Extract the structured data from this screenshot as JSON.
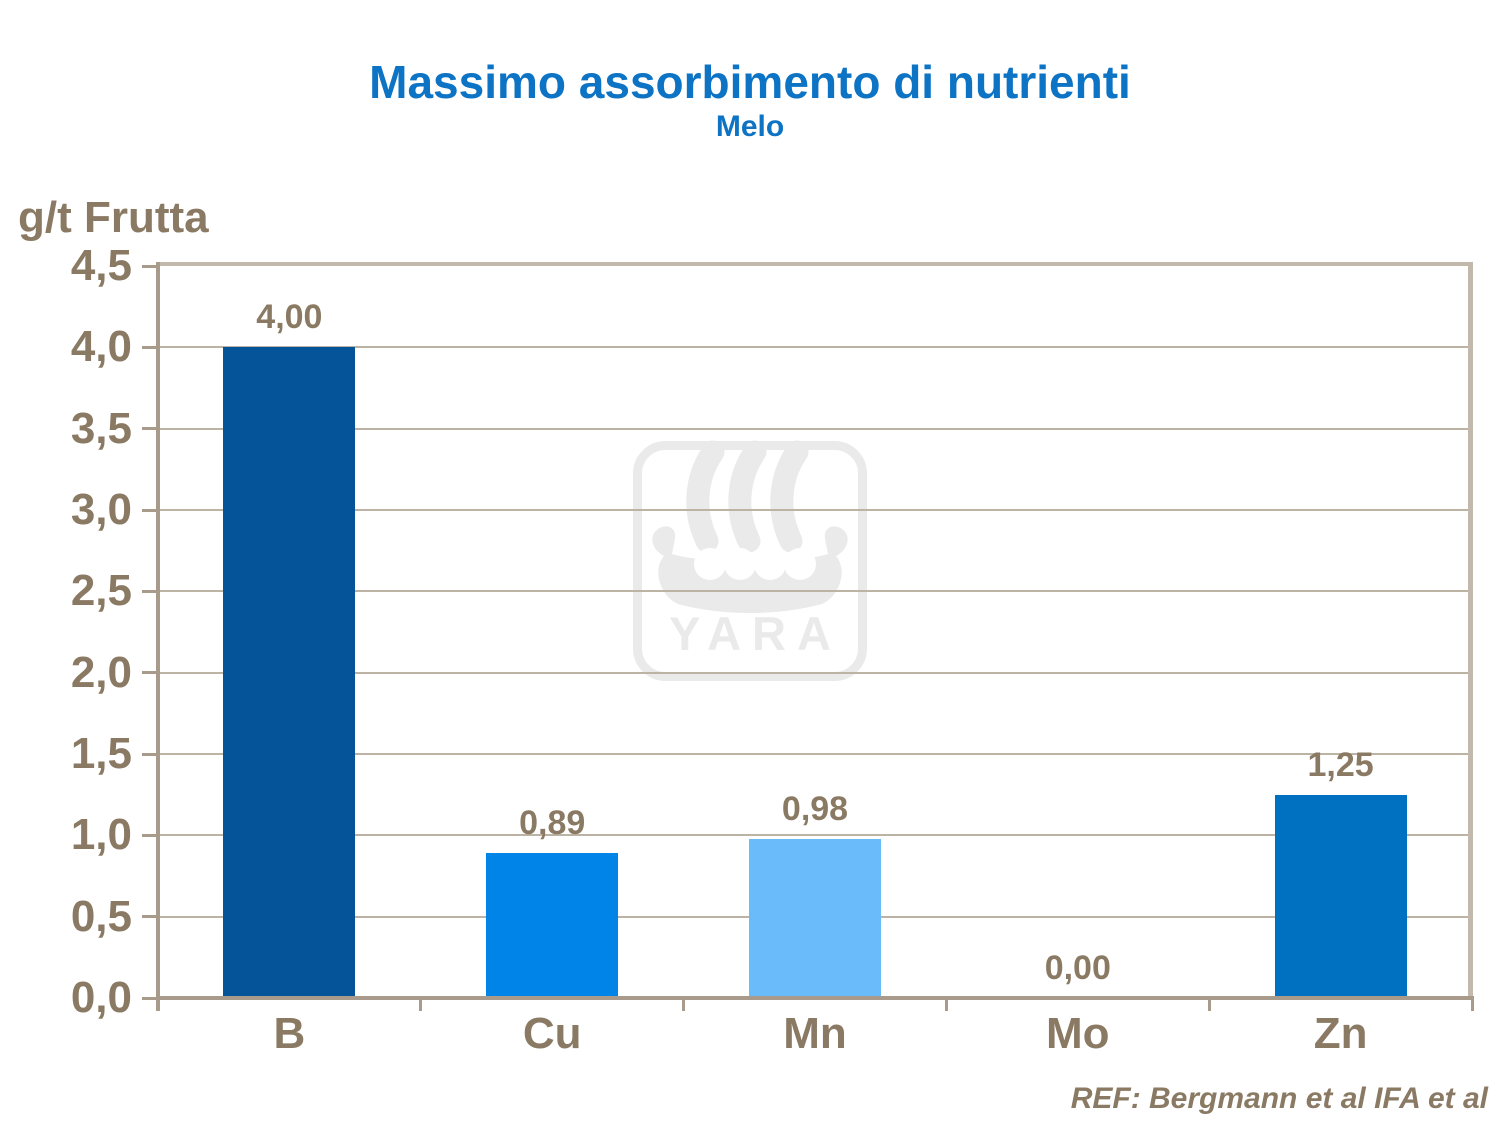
{
  "title": "Massimo assorbimento di nutrienti",
  "subtitle": "Melo",
  "y_axis_title": "g/t Frutta",
  "ref_note": "REF: Bergmann et al IFA et al",
  "watermark": {
    "text": "YARA",
    "icon": "yara-viking-ship-logo",
    "color": "#EAEAEA"
  },
  "colors": {
    "title_blue": "#0D73C4",
    "label_brown": "#8A7A64",
    "axis_dark_tan": "#A89B8B",
    "axis_light_tan": "#C2B8AB",
    "gridline_tan": "#BDB3A4",
    "background": "#FFFFFF"
  },
  "chart_data": {
    "type": "bar",
    "title": "Massimo assorbimento di nutrienti",
    "subtitle": "Melo",
    "ylabel": "g/t Frutta",
    "xlabel": "",
    "categories": [
      "B",
      "Cu",
      "Mn",
      "Mo",
      "Zn"
    ],
    "values": [
      4.0,
      0.89,
      0.98,
      0.0,
      1.25
    ],
    "value_labels": [
      "4,00",
      "0,89",
      "0,98",
      "0,00",
      "1,25"
    ],
    "bar_colors": [
      "#05549A",
      "#0084E8",
      "#69BBFA",
      "#0070C0",
      "#0070C0"
    ],
    "ylim": [
      0,
      4.5
    ],
    "ytick_step": 0.5,
    "ytick_labels": [
      "4,5",
      "4,0",
      "3,5",
      "3,0",
      "2,5",
      "2,0",
      "1,5",
      "1,0",
      "0,5",
      "0,0"
    ],
    "grid": true,
    "legend": false,
    "annotations": [
      "REF: Bergmann et al IFA et al"
    ]
  }
}
